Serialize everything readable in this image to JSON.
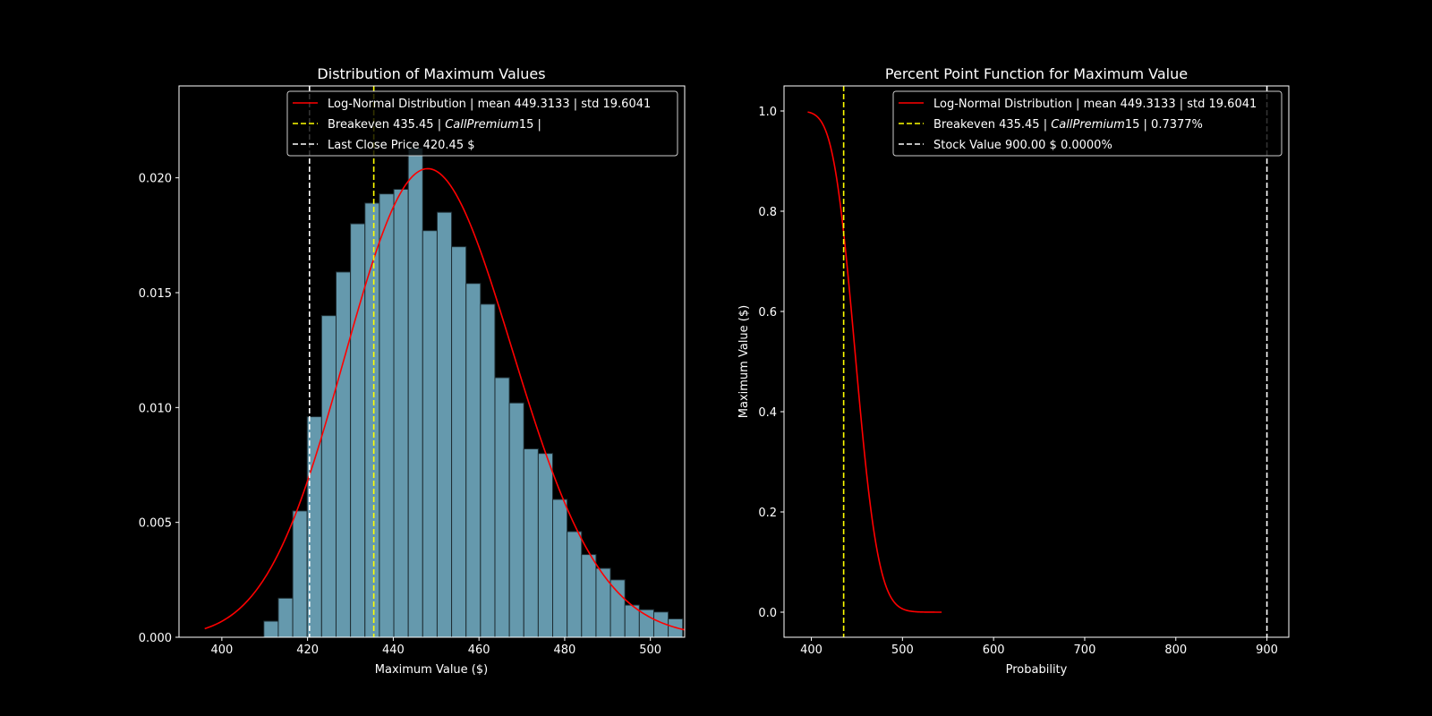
{
  "chart_data": [
    {
      "type": "bar",
      "title": "Distribution of Maximum Values",
      "xlabel": "Maximum Value ($)",
      "ylabel": "",
      "xlim": [
        390,
        508
      ],
      "ylim": [
        0,
        0.024
      ],
      "grid": false,
      "legend_position": "top-right",
      "xticks": [
        "400",
        "420",
        "440",
        "460",
        "480",
        "500"
      ],
      "yticks": [
        "0.000",
        "0.005",
        "0.010",
        "0.015",
        "0.020"
      ],
      "bins": {
        "start": 409.8,
        "width": 3.37
      },
      "values": [
        0.0007,
        0.0017,
        0.0055,
        0.0096,
        0.014,
        0.0159,
        0.018,
        0.0189,
        0.0193,
        0.0195,
        0.0213,
        0.0177,
        0.0185,
        0.017,
        0.0154,
        0.0145,
        0.0113,
        0.0102,
        0.0082,
        0.008,
        0.006,
        0.0046,
        0.0036,
        0.003,
        0.0025,
        0.0014,
        0.0012,
        0.0011,
        0.0008
      ],
      "series": [
        {
          "name": "Log-Normal Distribution | mean 449.3133 | std 19.6041",
          "kind": "pdf",
          "mean": 449.3133,
          "std": 19.6041,
          "x_range": [
            396,
            508
          ],
          "color": "#ff0000"
        }
      ],
      "vlines": [
        {
          "name": "Breakeven 435.45 |",
          "name_italic": "CallPremium",
          "name_tail": "15 |",
          "x": 435.45,
          "color": "#ffff00"
        },
        {
          "name": "Last Close Price 420.45 $",
          "x": 420.45,
          "color": "#ffffff"
        }
      ],
      "bar_color": "#6599ad"
    },
    {
      "type": "line",
      "title": "Percent Point Function for Maximum Value",
      "xlabel": "Probability",
      "ylabel": "Maximum Value ($)",
      "xlim": [
        370,
        924
      ],
      "ylim": [
        -0.05,
        1.05
      ],
      "grid": false,
      "legend_position": "top-right",
      "xticks": [
        "400",
        "500",
        "600",
        "700",
        "800",
        "900"
      ],
      "yticks": [
        "0.0",
        "0.2",
        "0.4",
        "0.6",
        "0.8",
        "1.0"
      ],
      "series": [
        {
          "name": "Log-Normal Distribution | mean 449.3133 | std 19.6041",
          "kind": "survival",
          "mean": 449.3133,
          "std": 19.6041,
          "x_range": [
            396,
            543
          ],
          "color": "#ff0000"
        }
      ],
      "vlines": [
        {
          "name": "Breakeven 435.45 |",
          "name_italic": "CallPremium",
          "name_tail": "15 | 0.7377%",
          "x": 435.45,
          "color": "#ffff00"
        },
        {
          "name": "Stock Value 900.00 $ 0.0000%",
          "x": 900.0,
          "color": "#ffffff"
        }
      ]
    }
  ]
}
